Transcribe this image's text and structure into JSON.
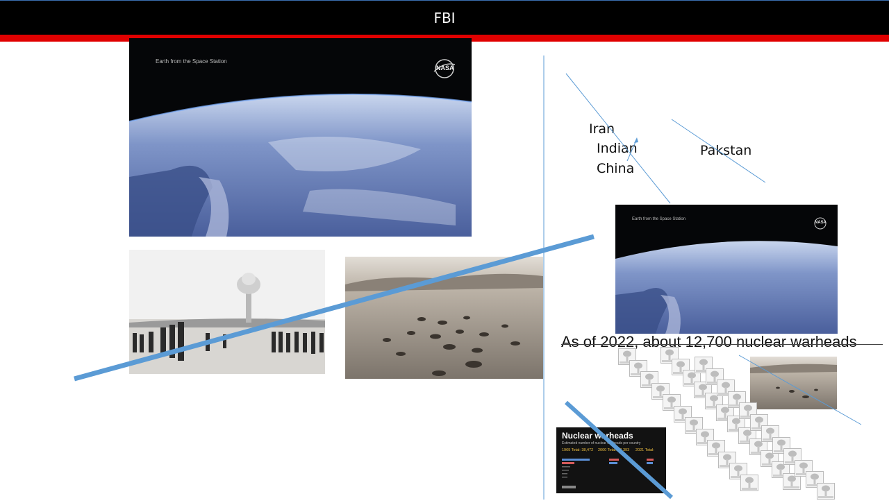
{
  "header": {
    "title": "FBI"
  },
  "colors": {
    "header_bg": "#000000",
    "accent_red": "#e00000",
    "line_blue": "#5b9bd5"
  },
  "images": {
    "earth_large": {
      "overlay_text": "Earth from the Space Station",
      "logo": "NASA"
    },
    "nuclear_test": {
      "description_icon": "mushroom-cloud-photo"
    },
    "crater_field": {
      "description_icon": "crater-field-photo"
    },
    "earth_small": {
      "overlay_text": "Earth from the Space Station",
      "logo": "NASA"
    },
    "chart_thumb": {
      "title": "Nuclear warheads",
      "subtitle": "Estimated number of nuclear warheads per country",
      "col1": "1969  Total: 38,472",
      "col2": "2000  Total: 23,393",
      "col3": "2021  Total:"
    }
  },
  "labels": {
    "iran": "Iran",
    "indian": "Indian",
    "china": "China",
    "pakistan": "Pakstan"
  },
  "caption": "As of 2022, about 12,700 nuclear warheads"
}
